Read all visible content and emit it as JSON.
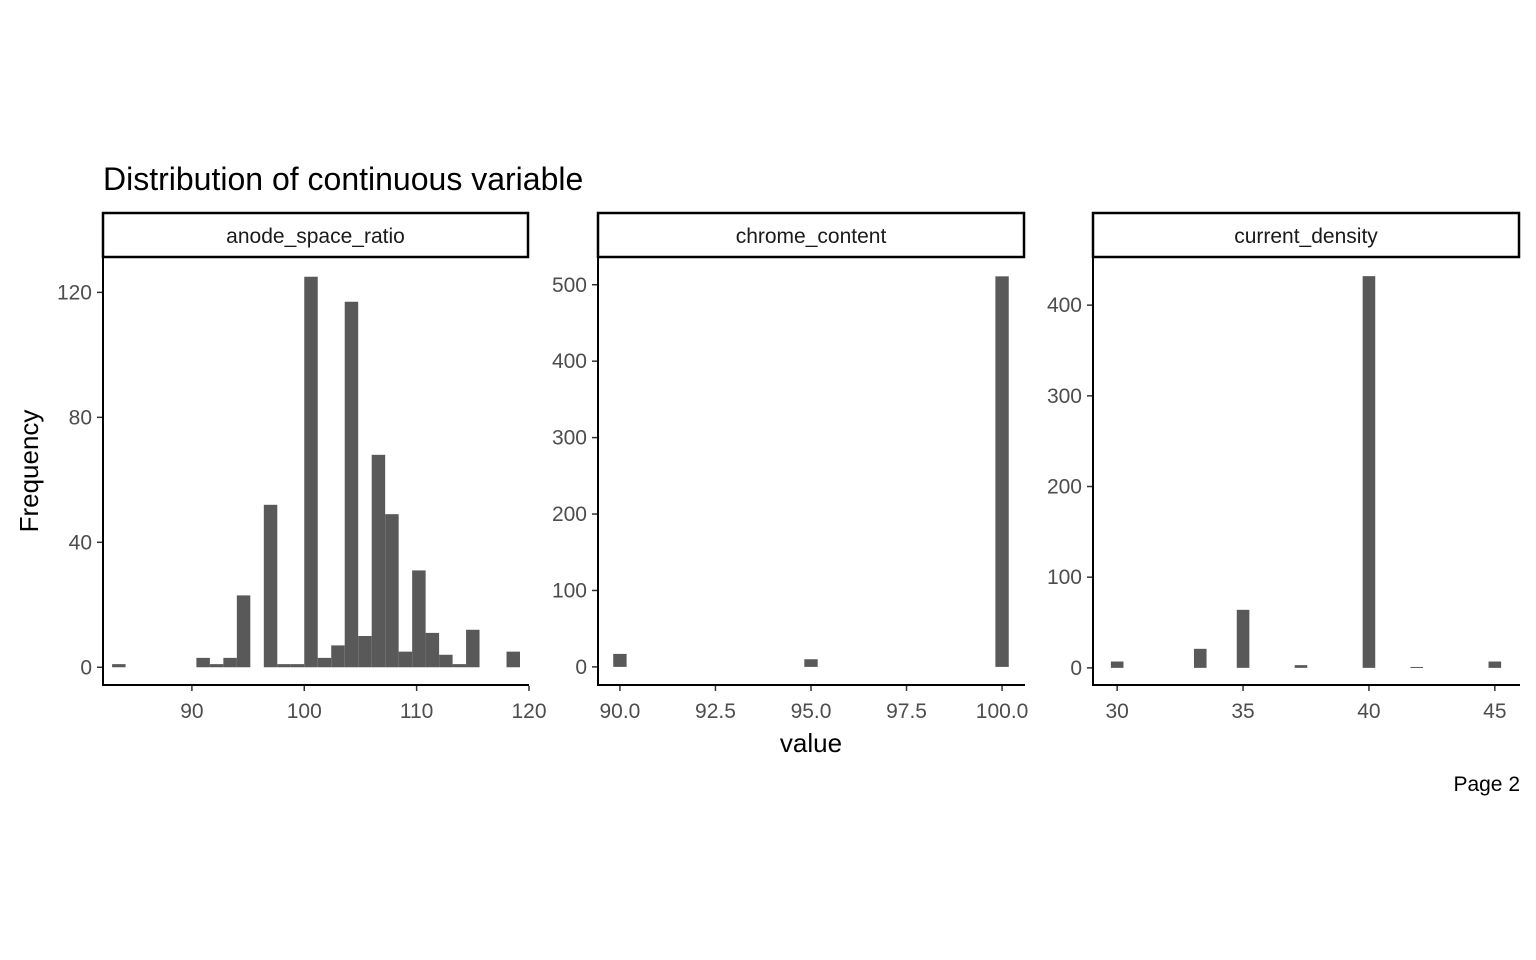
{
  "page_label": "Page 2",
  "chart_data": {
    "type": "bar",
    "subtype": "faceted-histogram",
    "title": "Distribution of continuous variable",
    "xlabel": "value",
    "ylabel": "Frequency",
    "bar_color": "#595959",
    "grid": false,
    "legend": "none",
    "facets": [
      {
        "name": "anode_space_ratio",
        "xlim": [
          82,
          120
        ],
        "ylim": [
          -6,
          131
        ],
        "xticks": [
          90,
          100,
          110,
          120
        ],
        "xtick_labels": [
          "90",
          "100",
          "110",
          "120"
        ],
        "yticks": [
          0,
          40,
          80,
          120
        ],
        "ytick_labels": [
          "0",
          "40",
          "80",
          "120"
        ],
        "bin_width": 1.2,
        "bins": [
          {
            "x": 83.5,
            "count": 1
          },
          {
            "x": 91.0,
            "count": 3
          },
          {
            "x": 92.2,
            "count": 1
          },
          {
            "x": 93.4,
            "count": 3
          },
          {
            "x": 94.6,
            "count": 23
          },
          {
            "x": 97.0,
            "count": 52
          },
          {
            "x": 98.2,
            "count": 1
          },
          {
            "x": 99.4,
            "count": 1
          },
          {
            "x": 100.6,
            "count": 125
          },
          {
            "x": 101.8,
            "count": 3
          },
          {
            "x": 103.0,
            "count": 7
          },
          {
            "x": 104.2,
            "count": 117
          },
          {
            "x": 105.4,
            "count": 10
          },
          {
            "x": 106.6,
            "count": 68
          },
          {
            "x": 107.8,
            "count": 49
          },
          {
            "x": 109.0,
            "count": 5
          },
          {
            "x": 110.2,
            "count": 31
          },
          {
            "x": 111.4,
            "count": 11
          },
          {
            "x": 112.6,
            "count": 4
          },
          {
            "x": 113.8,
            "count": 1
          },
          {
            "x": 115.0,
            "count": 12
          },
          {
            "x": 118.6,
            "count": 5
          }
        ]
      },
      {
        "name": "chrome_content",
        "xlim": [
          89.4,
          100.6
        ],
        "ylim": [
          -25,
          535
        ],
        "xticks": [
          90,
          92.5,
          95,
          97.5,
          100
        ],
        "xtick_labels": [
          "90.0",
          "92.5",
          "95.0",
          "97.5",
          "100.0"
        ],
        "yticks": [
          0,
          100,
          200,
          300,
          400,
          500
        ],
        "ytick_labels": [
          "0",
          "100",
          "200",
          "300",
          "400",
          "500"
        ],
        "bin_width": 0.35,
        "bins": [
          {
            "x": 90.0,
            "count": 17
          },
          {
            "x": 95.0,
            "count": 10
          },
          {
            "x": 100.0,
            "count": 511
          }
        ]
      },
      {
        "name": "current_density",
        "xlim": [
          29,
          46
        ],
        "ylim": [
          -20,
          452
        ],
        "xticks": [
          30,
          35,
          40,
          45
        ],
        "xtick_labels": [
          "30",
          "35",
          "40",
          "45"
        ],
        "yticks": [
          0,
          100,
          200,
          300,
          400
        ],
        "ytick_labels": [
          "0",
          "100",
          "200",
          "300",
          "400"
        ],
        "bin_width": 0.5,
        "bins": [
          {
            "x": 30.0,
            "count": 7
          },
          {
            "x": 33.3,
            "count": 21
          },
          {
            "x": 35.0,
            "count": 64
          },
          {
            "x": 37.3,
            "count": 3
          },
          {
            "x": 40.0,
            "count": 432
          },
          {
            "x": 41.9,
            "count": 1
          },
          {
            "x": 45.0,
            "count": 7
          }
        ]
      }
    ]
  }
}
